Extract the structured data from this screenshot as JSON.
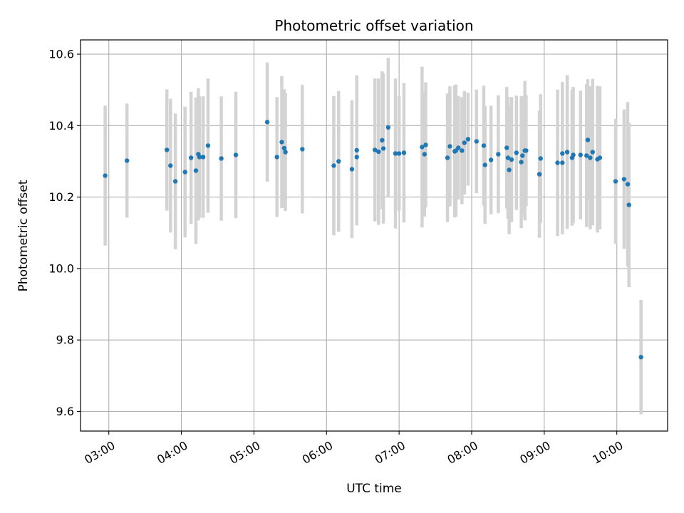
{
  "chart_data": {
    "type": "scatter",
    "title": "Photometric offset variation",
    "xlabel": "UTC time",
    "ylabel": "Photometric offset",
    "xlim_hours": [
      2.61,
      10.7
    ],
    "ylim": [
      9.545,
      10.64
    ],
    "grid": true,
    "x_ticks": [
      {
        "h": 3,
        "label": "03:00"
      },
      {
        "h": 4,
        "label": "04:00"
      },
      {
        "h": 5,
        "label": "05:00"
      },
      {
        "h": 6,
        "label": "06:00"
      },
      {
        "h": 7,
        "label": "07:00"
      },
      {
        "h": 8,
        "label": "08:00"
      },
      {
        "h": 9,
        "label": "09:00"
      },
      {
        "h": 10,
        "label": "10:00"
      }
    ],
    "y_ticks": [
      {
        "v": 9.6,
        "label": "9.6"
      },
      {
        "v": 9.8,
        "label": "9.8"
      },
      {
        "v": 10.0,
        "label": "10.0"
      },
      {
        "v": 10.2,
        "label": "10.2"
      },
      {
        "v": 10.4,
        "label": "10.4"
      },
      {
        "v": 10.6,
        "label": "10.6"
      }
    ],
    "colors": {
      "point": "#1f77b4",
      "errorbar": "#d3d3d3",
      "grid": "#b0b0b0"
    },
    "points": [
      [
        "02:57",
        10.26,
        0.196
      ],
      [
        "03:15",
        10.302,
        0.16
      ],
      [
        "03:48",
        10.332,
        0.17
      ],
      [
        "03:51",
        10.288,
        0.187
      ],
      [
        "03:55",
        10.244,
        0.19
      ],
      [
        "04:03",
        10.27,
        0.183
      ],
      [
        "04:08",
        10.31,
        0.185
      ],
      [
        "04:12",
        10.274,
        0.205
      ],
      [
        "04:14",
        10.32,
        0.185
      ],
      [
        "04:15",
        10.312,
        0.17
      ],
      [
        "04:18",
        10.312,
        0.17
      ],
      [
        "04:22",
        10.344,
        0.188
      ],
      [
        "04:33",
        10.308,
        0.174
      ],
      [
        "04:45",
        10.318,
        0.177
      ],
      [
        "05:11",
        10.41,
        0.167
      ],
      [
        "05:19",
        10.312,
        0.168
      ],
      [
        "05:23",
        10.354,
        0.185
      ],
      [
        "05:25",
        10.337,
        0.165
      ],
      [
        "05:26",
        10.326,
        0.165
      ],
      [
        "05:40",
        10.334,
        0.18
      ],
      [
        "06:06",
        10.288,
        0.195
      ],
      [
        "06:10",
        10.3,
        0.197
      ],
      [
        "06:21",
        10.278,
        0.193
      ],
      [
        "06:25",
        10.312,
        0.19
      ],
      [
        "06:25",
        10.331,
        0.21
      ],
      [
        "06:40",
        10.332,
        0.2
      ],
      [
        "06:43",
        10.327,
        0.205
      ],
      [
        "06:46",
        10.359,
        0.193
      ],
      [
        "06:47",
        10.336,
        0.21
      ],
      [
        "06:51",
        10.395,
        0.195
      ],
      [
        "06:57",
        10.322,
        0.21
      ],
      [
        "07:00",
        10.322,
        0.16
      ],
      [
        "07:04",
        10.324,
        0.195
      ],
      [
        "07:19",
        10.34,
        0.225
      ],
      [
        "07:21",
        10.32,
        0.175
      ],
      [
        "07:22",
        10.346,
        0.175
      ],
      [
        "07:40",
        10.31,
        0.18
      ],
      [
        "07:42",
        10.342,
        0.168
      ],
      [
        "07:46",
        10.328,
        0.185
      ],
      [
        "07:47",
        10.33,
        0.185
      ],
      [
        "07:49",
        10.338,
        0.145
      ],
      [
        "07:52",
        10.33,
        0.15
      ],
      [
        "07:54",
        10.352,
        0.145
      ],
      [
        "07:57",
        10.362,
        0.13
      ],
      [
        "08:04",
        10.356,
        0.145
      ],
      [
        "08:10",
        10.344,
        0.168
      ],
      [
        "08:11",
        10.29,
        0.165
      ],
      [
        "08:16",
        10.304,
        0.152
      ],
      [
        "08:22",
        10.32,
        0.165
      ],
      [
        "08:29",
        10.338,
        0.17
      ],
      [
        "08:30",
        10.31,
        0.17
      ],
      [
        "08:31",
        10.276,
        0.18
      ],
      [
        "08:33",
        10.305,
        0.175
      ],
      [
        "08:37",
        10.324,
        0.16
      ],
      [
        "08:41",
        10.298,
        0.185
      ],
      [
        "08:42",
        10.316,
        0.165
      ],
      [
        "08:44",
        10.33,
        0.195
      ],
      [
        "08:45",
        10.33,
        0.155
      ],
      [
        "08:56",
        10.264,
        0.178
      ],
      [
        "08:57",
        10.308,
        0.18
      ],
      [
        "09:11",
        10.296,
        0.205
      ],
      [
        "09:15",
        10.322,
        0.2
      ],
      [
        "09:15",
        10.296,
        0.2
      ],
      [
        "09:19",
        10.326,
        0.215
      ],
      [
        "09:23",
        10.31,
        0.19
      ],
      [
        "09:24",
        10.318,
        0.19
      ],
      [
        "09:30",
        10.318,
        0.18
      ],
      [
        "09:35",
        10.316,
        0.2
      ],
      [
        "09:36",
        10.36,
        0.17
      ],
      [
        "09:38",
        10.31,
        0.2
      ],
      [
        "09:40",
        10.326,
        0.205
      ],
      [
        "09:44",
        10.306,
        0.205
      ],
      [
        "09:46",
        10.31,
        0.2
      ],
      [
        "09:59",
        10.244,
        0.175
      ],
      [
        "10:06",
        10.25,
        0.195
      ],
      [
        "10:09",
        10.236,
        0.23
      ],
      [
        "10:10",
        10.178,
        0.23
      ],
      [
        "10:20",
        9.752,
        0.16
      ]
    ]
  }
}
